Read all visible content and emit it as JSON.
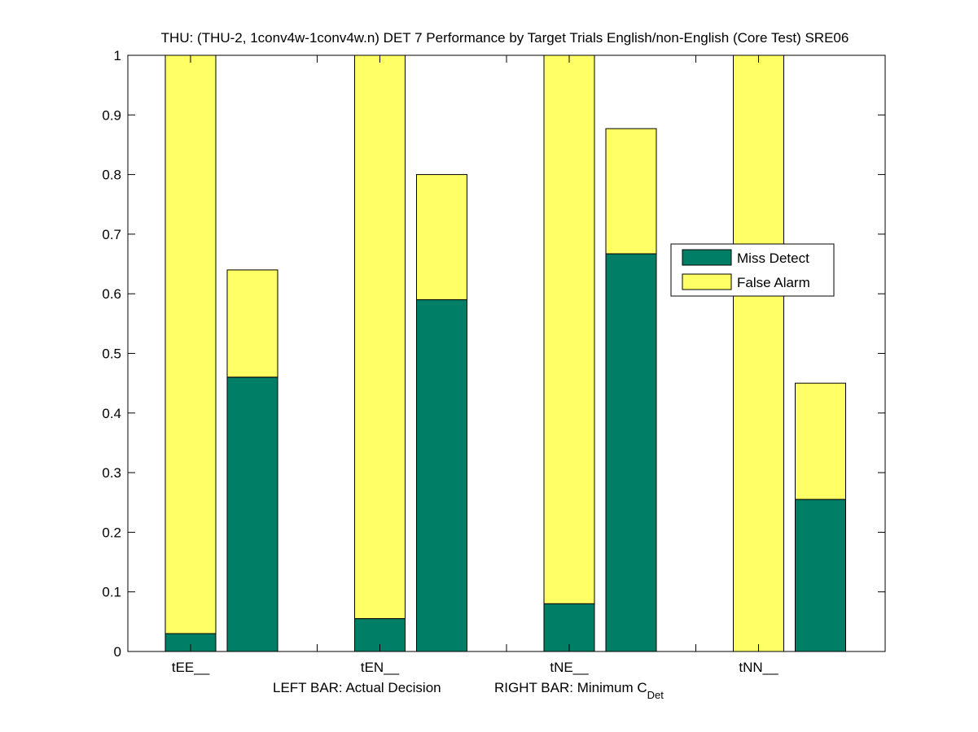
{
  "chart_data": {
    "type": "bar",
    "stacked": true,
    "title": "THU: (THU-2, 1conv4w-1conv4w.n) DET 7 Performance by Target Trials English/non-English (Core Test) SRE06",
    "categories": [
      "tEE__",
      "tEN__",
      "tNE__",
      "tNN__"
    ],
    "bar_roles": [
      "Actual Decision",
      "Minimum C_Det"
    ],
    "series": [
      {
        "name": "Miss Detect",
        "color": "#007f66",
        "actual": [
          0.03,
          0.055,
          0.08,
          0.0
        ],
        "minimum": [
          0.46,
          0.59,
          0.667,
          0.255
        ]
      },
      {
        "name": "False Alarm",
        "color": "#ffff66",
        "actual": [
          0.97,
          0.945,
          0.92,
          1.0
        ],
        "minimum": [
          0.18,
          0.21,
          0.21,
          0.195
        ]
      }
    ],
    "ylim": [
      0,
      1
    ],
    "yticks": [
      "0",
      "0.1",
      "0.2",
      "0.3",
      "0.4",
      "0.5",
      "0.6",
      "0.7",
      "0.8",
      "0.9",
      "1"
    ],
    "xlabel": {
      "left": "LEFT BAR: Actual Decision",
      "right_prefix": "RIGHT BAR: Minimum C",
      "right_subscript": "Det"
    },
    "legend": {
      "position": "right-middle",
      "entries": [
        "Miss Detect",
        "False Alarm"
      ]
    }
  }
}
